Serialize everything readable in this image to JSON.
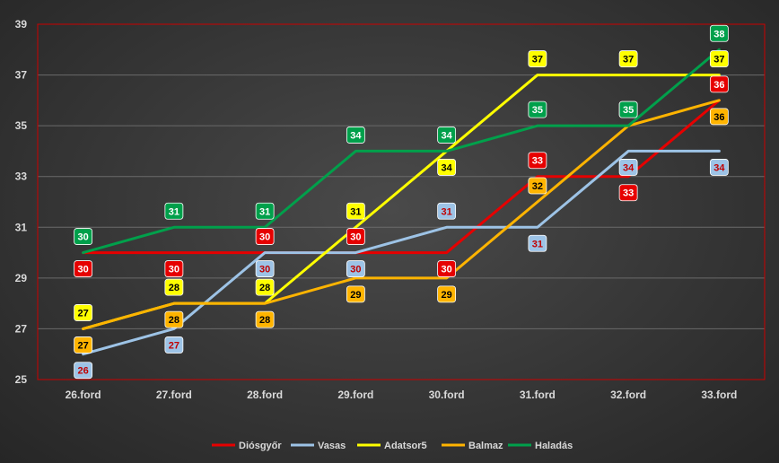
{
  "chart_data": {
    "type": "line",
    "categories": [
      "26.ford",
      "27.ford",
      "28.ford",
      "29.ford",
      "30.ford",
      "31.ford",
      "32.ford",
      "33.ford"
    ],
    "ylim": [
      25,
      39
    ],
    "yticks": [
      25,
      27,
      29,
      31,
      33,
      35,
      37,
      39
    ],
    "grid": true,
    "legend_position": "bottom",
    "series": [
      {
        "name": "Diósgyőr",
        "color": "#e60000",
        "label_bg": "#e60000",
        "label_color": "#ffffff",
        "values": [
          30,
          30,
          30,
          30,
          30,
          33,
          33,
          36
        ],
        "label_side": [
          "below",
          "below",
          "above",
          "above",
          "below",
          "above",
          "below",
          "above"
        ]
      },
      {
        "name": "Vasas",
        "color": "#9dc3e6",
        "label_bg": "#9dc3e6",
        "label_color": "#c00000",
        "values": [
          26,
          27,
          30,
          30,
          31,
          31,
          34,
          34
        ],
        "label_side": [
          "below",
          "below",
          "below",
          "below",
          "above",
          "below",
          "below",
          "below"
        ]
      },
      {
        "name": "Adatsor5",
        "color": "#ffff00",
        "label_bg": "#ffff00",
        "label_color": "#000000",
        "values": [
          27,
          28,
          28,
          31,
          34,
          37,
          37,
          37
        ],
        "label_side": [
          "above",
          "above",
          "above",
          "above",
          "below",
          "above",
          "above",
          "above"
        ]
      },
      {
        "name": "Balmaz",
        "color": "#ffb400",
        "label_bg": "#ffb400",
        "label_color": "#000000",
        "values": [
          27,
          28,
          28,
          29,
          29,
          32,
          35,
          36
        ],
        "label_side": [
          "below",
          "below",
          "below",
          "below",
          "below",
          "above",
          "above",
          "below"
        ]
      },
      {
        "name": "Haladás",
        "color": "#00a04b",
        "label_bg": "#00a04b",
        "label_color": "#ffffff",
        "values": [
          30,
          31,
          31,
          34,
          34,
          35,
          35,
          38
        ],
        "label_side": [
          "above",
          "above",
          "above",
          "above",
          "above",
          "above",
          "above",
          "above"
        ]
      }
    ]
  }
}
